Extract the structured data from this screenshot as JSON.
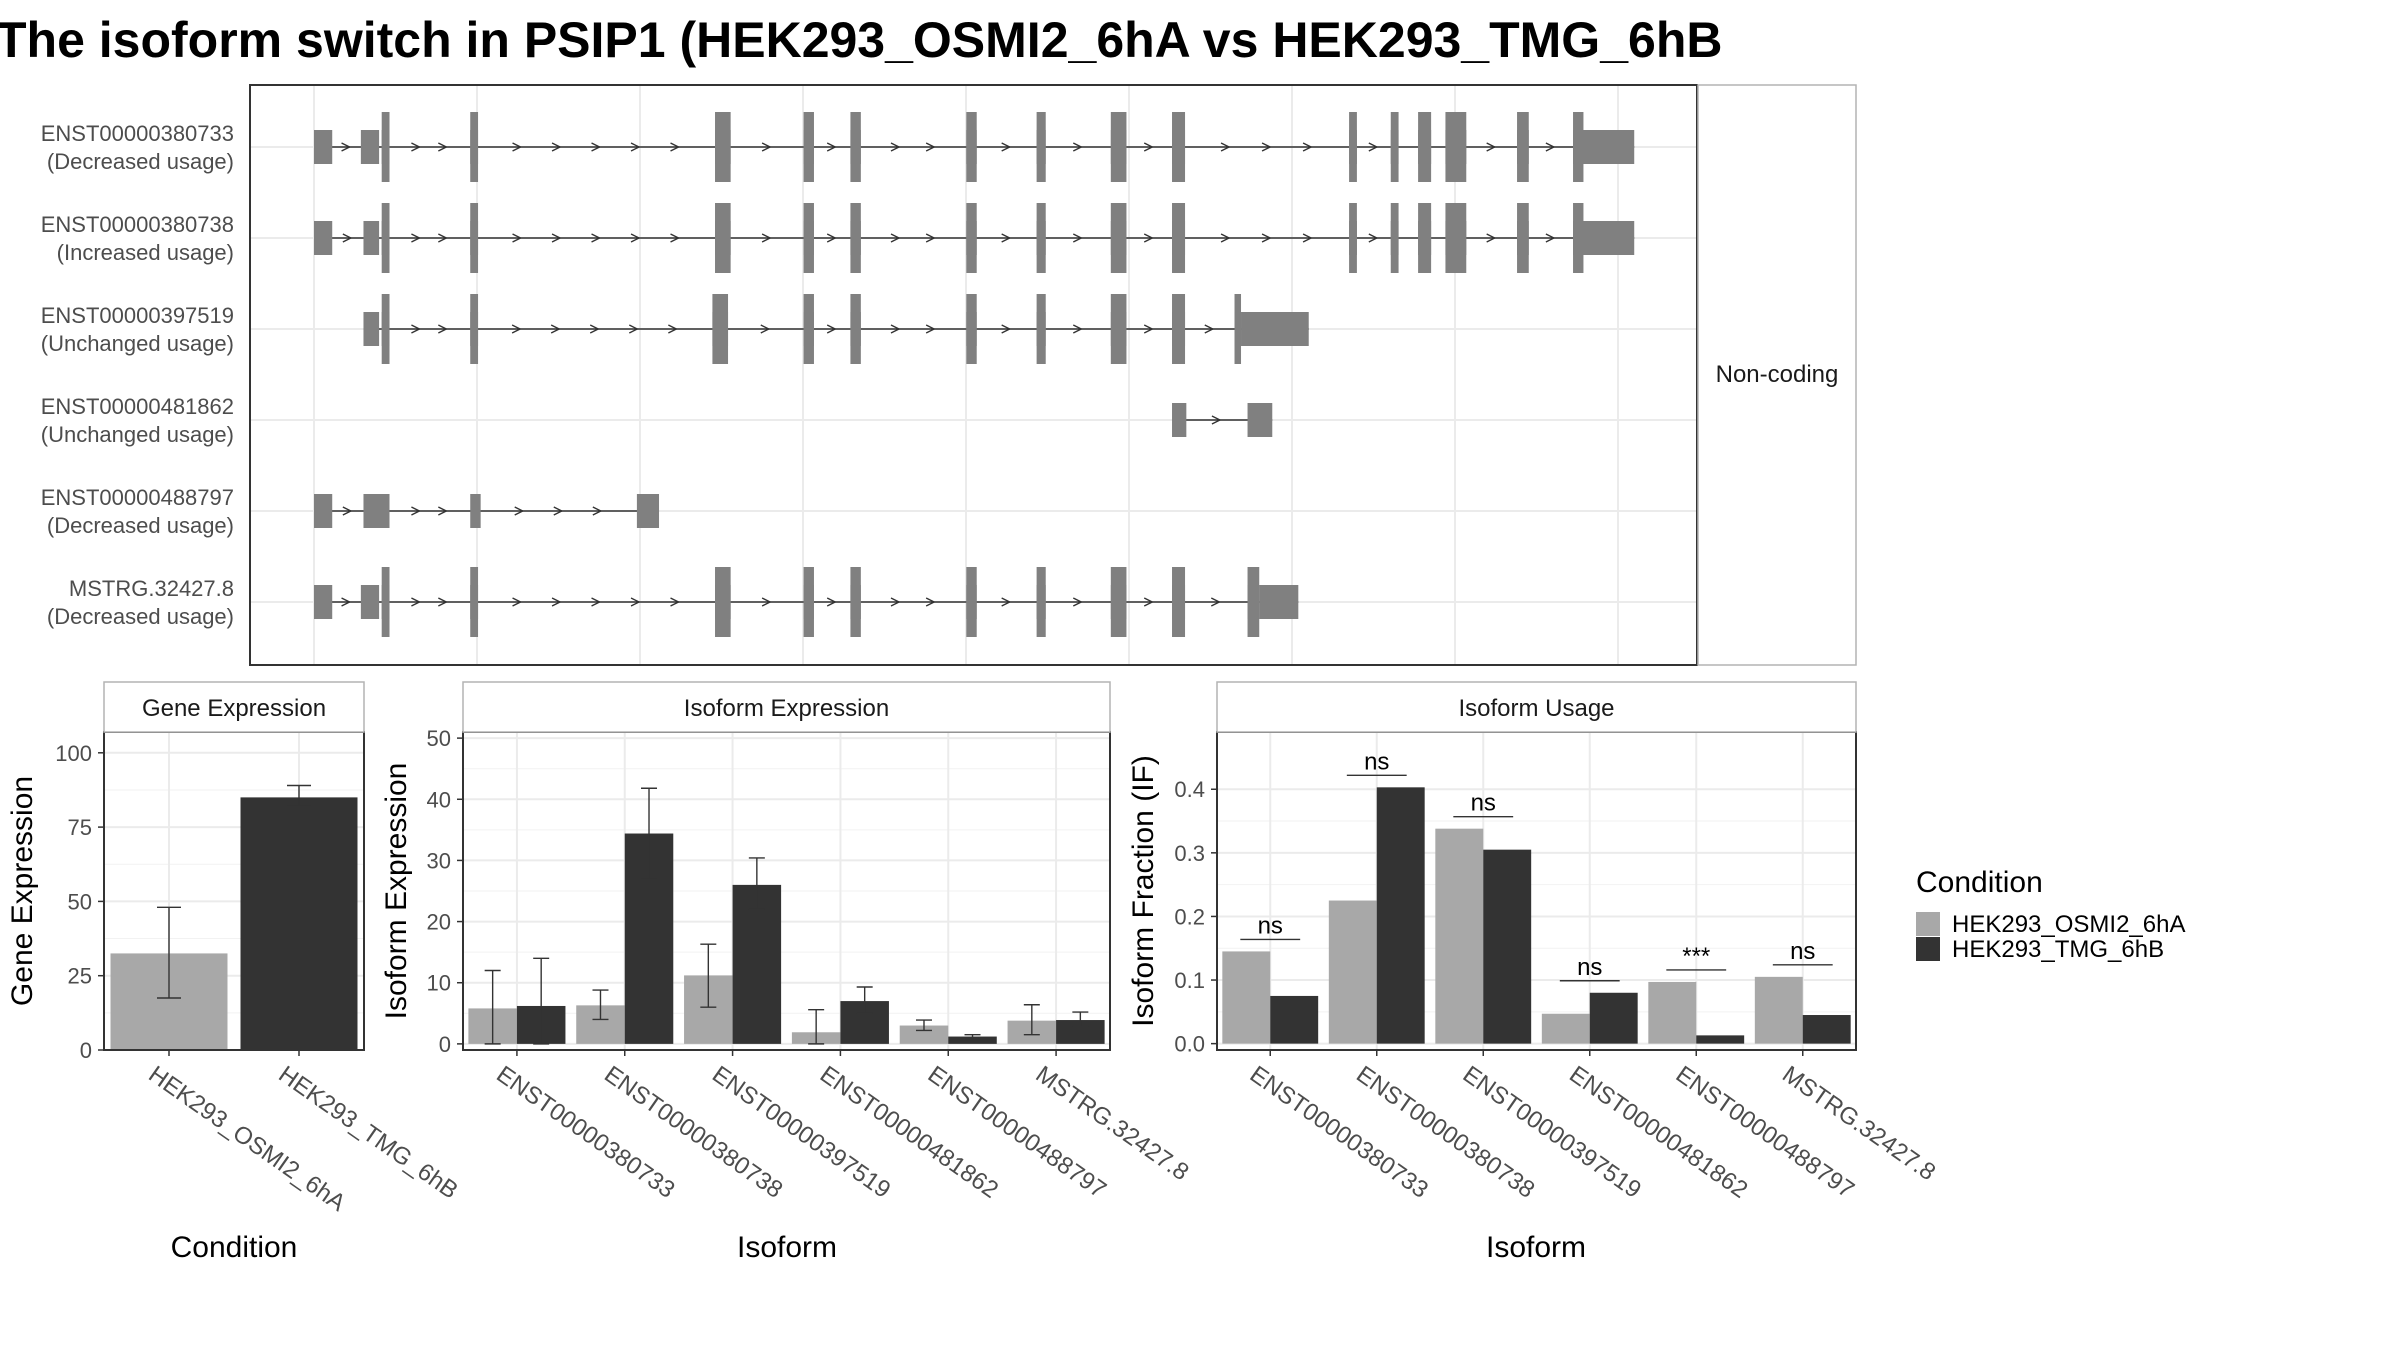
{
  "title": "The isoform switch in PSIP1 (HEK293_OSMI2_6hA vs HEK293_TMG_6hB",
  "colors": {
    "condition_a": "#a8a8a8",
    "condition_b": "#333333",
    "exon": "#808080",
    "intron": "#333333",
    "grid": "#ebebeb",
    "frame": "#333333",
    "strip_fill": "#ffffff",
    "strip_border": "#b3b3b3"
  },
  "transcript_panel": {
    "facet_label": "Non-coding",
    "x_range": [
      0,
      1000
    ],
    "transcripts": [
      {
        "id": "ENST00000380733",
        "usage": "(Decreased usage)",
        "exons": [
          [
            0,
            14
          ],
          [
            36,
            50
          ],
          [
            52,
            58
          ],
          [
            120,
            126
          ],
          [
            308,
            320
          ],
          [
            376,
            384
          ],
          [
            412,
            420
          ],
          [
            501,
            509
          ],
          [
            555,
            562
          ],
          [
            612,
            624
          ],
          [
            659,
            669
          ],
          [
            795,
            801
          ],
          [
            827,
            833
          ],
          [
            848,
            858
          ],
          [
            869,
            885
          ],
          [
            924,
            933
          ],
          [
            967,
            1014
          ]
        ],
        "tall": [
          [
            52,
            58
          ],
          [
            120,
            126
          ],
          [
            308,
            320
          ],
          [
            376,
            384
          ],
          [
            412,
            420
          ],
          [
            501,
            509
          ],
          [
            555,
            562
          ],
          [
            612,
            624
          ],
          [
            659,
            669
          ],
          [
            795,
            801
          ],
          [
            827,
            833
          ],
          [
            848,
            858
          ],
          [
            869,
            885
          ],
          [
            924,
            933
          ],
          [
            967,
            975
          ]
        ]
      },
      {
        "id": "ENST00000380738",
        "usage": "(Increased usage)",
        "exons": [
          [
            0,
            14
          ],
          [
            38,
            50
          ],
          [
            52,
            58
          ],
          [
            120,
            126
          ],
          [
            308,
            320
          ],
          [
            376,
            384
          ],
          [
            412,
            420
          ],
          [
            501,
            509
          ],
          [
            555,
            562
          ],
          [
            612,
            624
          ],
          [
            659,
            669
          ],
          [
            795,
            801
          ],
          [
            827,
            833
          ],
          [
            848,
            858
          ],
          [
            869,
            885
          ],
          [
            924,
            933
          ],
          [
            967,
            1014
          ]
        ],
        "tall": [
          [
            52,
            58
          ],
          [
            120,
            126
          ],
          [
            308,
            320
          ],
          [
            376,
            384
          ],
          [
            412,
            420
          ],
          [
            501,
            509
          ],
          [
            555,
            562
          ],
          [
            612,
            624
          ],
          [
            659,
            669
          ],
          [
            795,
            801
          ],
          [
            827,
            833
          ],
          [
            848,
            858
          ],
          [
            869,
            885
          ],
          [
            924,
            933
          ],
          [
            967,
            975
          ]
        ]
      },
      {
        "id": "ENST00000397519",
        "usage": "(Unchanged usage)",
        "exons": [
          [
            38,
            50
          ],
          [
            52,
            58
          ],
          [
            120,
            126
          ],
          [
            306,
            318
          ],
          [
            376,
            384
          ],
          [
            412,
            420
          ],
          [
            501,
            509
          ],
          [
            555,
            562
          ],
          [
            612,
            624
          ],
          [
            659,
            669
          ],
          [
            707,
            712
          ],
          [
            712,
            764
          ]
        ],
        "tall": [
          [
            52,
            58
          ],
          [
            120,
            126
          ],
          [
            306,
            318
          ],
          [
            376,
            384
          ],
          [
            412,
            420
          ],
          [
            501,
            509
          ],
          [
            555,
            562
          ],
          [
            612,
            624
          ],
          [
            659,
            669
          ],
          [
            707,
            712
          ]
        ]
      },
      {
        "id": "ENST00000481862",
        "usage": "(Unchanged usage)",
        "exons": [
          [
            659,
            670
          ],
          [
            717,
            736
          ]
        ],
        "tall": []
      },
      {
        "id": "ENST00000488797",
        "usage": "(Decreased usage)",
        "exons": [
          [
            0,
            14
          ],
          [
            38,
            58
          ],
          [
            120,
            128
          ],
          [
            248,
            265
          ]
        ],
        "tall": []
      },
      {
        "id": "MSTRG.32427.8",
        "usage": "(Decreased usage)",
        "exons": [
          [
            0,
            14
          ],
          [
            36,
            50
          ],
          [
            52,
            58
          ],
          [
            120,
            126
          ],
          [
            308,
            320
          ],
          [
            376,
            384
          ],
          [
            412,
            420
          ],
          [
            501,
            509
          ],
          [
            555,
            562
          ],
          [
            612,
            624
          ],
          [
            659,
            669
          ],
          [
            717,
            726
          ],
          [
            726,
            756
          ]
        ],
        "tall": [
          [
            52,
            58
          ],
          [
            120,
            126
          ],
          [
            308,
            320
          ],
          [
            376,
            384
          ],
          [
            412,
            420
          ],
          [
            501,
            509
          ],
          [
            555,
            562
          ],
          [
            612,
            624
          ],
          [
            659,
            669
          ],
          [
            717,
            726
          ]
        ]
      }
    ]
  },
  "chart_data": [
    {
      "type": "bar",
      "title": "Gene Expression",
      "xlabel": "Condition",
      "ylabel": "Gene Expression",
      "ylim": [
        0,
        107
      ],
      "yticks": [
        0,
        25,
        50,
        75,
        100
      ],
      "categories": [
        "HEK293_OSMI2_6hA",
        "HEK293_TMG_6hB"
      ],
      "series": [
        {
          "values": [
            32.5,
            85
          ],
          "err_low": [
            17.5,
            82
          ],
          "err_high": [
            48,
            89
          ]
        }
      ],
      "grid": true
    },
    {
      "type": "bar",
      "title": "Isoform Expression",
      "xlabel": "Isoform",
      "ylabel": "Isoform Expression",
      "ylim": [
        -1,
        51
      ],
      "yticks": [
        0,
        10,
        20,
        30,
        40,
        50
      ],
      "categories": [
        "ENST00000380733",
        "ENST00000380738",
        "ENST00000397519",
        "ENST00000481862",
        "ENST00000488797",
        "MSTRG.32427.8"
      ],
      "series": [
        {
          "name": "HEK293_OSMI2_6hA",
          "values": [
            5.8,
            6.3,
            11.2,
            1.9,
            3.0,
            3.8
          ],
          "err_low": [
            0,
            4,
            6,
            0,
            2.2,
            1.5
          ],
          "err_high": [
            12,
            8.8,
            16.3,
            5.6,
            3.9,
            6.4
          ]
        },
        {
          "name": "HEK293_TMG_6hB",
          "values": [
            6.2,
            34.4,
            26.0,
            7.0,
            1.2,
            3.9
          ],
          "err_low": [
            0,
            27,
            22,
            5,
            0.8,
            2.8
          ],
          "err_high": [
            14,
            41.8,
            30.4,
            9.3,
            1.5,
            5.2
          ]
        }
      ],
      "grid": true
    },
    {
      "type": "bar",
      "title": "Isoform Usage",
      "xlabel": "Isoform",
      "ylabel": "Isoform Fraction (IF)",
      "ylim": [
        -0.01,
        0.49
      ],
      "yticks": [
        0.0,
        0.1,
        0.2,
        0.3,
        0.4
      ],
      "ytick_labels": [
        "0.0",
        "0.1",
        "0.2",
        "0.3",
        "0.4"
      ],
      "categories": [
        "ENST00000380733",
        "ENST00000380738",
        "ENST00000397519",
        "ENST00000481862",
        "ENST00000488797",
        "MSTRG.32427.8"
      ],
      "series": [
        {
          "name": "HEK293_OSMI2_6hA",
          "values": [
            0.145,
            0.225,
            0.338,
            0.047,
            0.097,
            0.105
          ]
        },
        {
          "name": "HEK293_TMG_6hB",
          "values": [
            0.075,
            0.403,
            0.305,
            0.08,
            0.013,
            0.045
          ]
        }
      ],
      "significance": [
        "ns",
        "ns",
        "ns",
        "ns",
        "***",
        "ns"
      ],
      "grid": true
    }
  ],
  "legend": {
    "title": "Condition",
    "placement": "right",
    "items": [
      "HEK293_OSMI2_6hA",
      "HEK293_TMG_6hB"
    ]
  }
}
